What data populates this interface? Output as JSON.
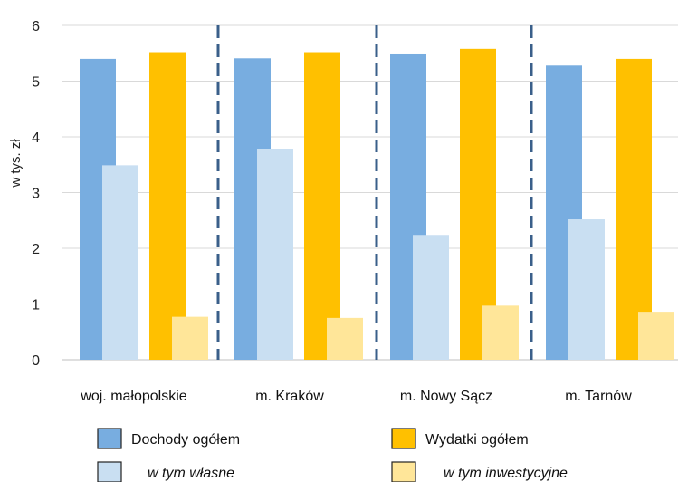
{
  "chart_data": {
    "type": "bar",
    "ylabel": "w tys. zł",
    "ylim": [
      0,
      6
    ],
    "yticks": [
      0,
      1,
      2,
      3,
      4,
      5,
      6
    ],
    "grid": true,
    "legend_position": "bottom",
    "categories": [
      "woj. małopolskie",
      "m. Kraków",
      "m. Nowy Sącz",
      "m. Tarnów"
    ],
    "groups": [
      {
        "name": "Dochody ogółem",
        "color": "#78ADE0",
        "values": [
          5.4,
          5.41,
          5.48,
          5.28
        ],
        "sub": {
          "name": "w tym własne",
          "color": "#C9DFF2",
          "values": [
            3.49,
            3.78,
            2.24,
            2.52
          ]
        }
      },
      {
        "name": "Wydatki ogółem",
        "color": "#FFC000",
        "values": [
          5.52,
          5.52,
          5.58,
          5.4
        ],
        "sub": {
          "name": "w tym inwestycyjne",
          "color": "#FFE699",
          "values": [
            0.77,
            0.75,
            0.97,
            0.86
          ]
        }
      }
    ],
    "separators": "dashed vertical lines between categories",
    "separator_color": "#3A5F8A"
  }
}
